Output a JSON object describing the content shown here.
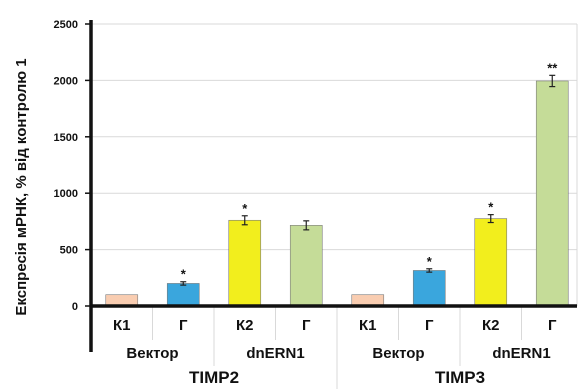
{
  "chart_data": {
    "type": "bar",
    "ylabel": "Експресія мРНК, % від контролю 1",
    "ylim": [
      0,
      2500
    ],
    "yticks": [
      0,
      500,
      1000,
      1500,
      2000,
      2500
    ],
    "grid": "horizontal",
    "categories": [
      "К1",
      "Г",
      "К2",
      "Г",
      "К1",
      "Г",
      "К2",
      "Г"
    ],
    "values": [
      100,
      200,
      760,
      715,
      100,
      315,
      775,
      1995
    ],
    "errors": [
      0,
      15,
      40,
      40,
      0,
      15,
      35,
      50
    ],
    "significance": [
      "",
      "*",
      "*",
      "",
      "",
      "*",
      "*",
      "**"
    ],
    "colors": [
      "#f9cdb1",
      "#3aa6dd",
      "#f2ee1d",
      "#c5dc98",
      "#f9cdb1",
      "#3aa6dd",
      "#f2ee1d",
      "#c5dc98"
    ],
    "subgroups": [
      {
        "label": "Вектор",
        "span": [
          0,
          1
        ]
      },
      {
        "label": "dnERN1",
        "span": [
          2,
          3
        ]
      },
      {
        "label": "Вектор",
        "span": [
          4,
          5
        ]
      },
      {
        "label": "dnERN1",
        "span": [
          6,
          7
        ]
      }
    ],
    "groups": [
      {
        "label": "TIMP2",
        "span": [
          0,
          3
        ]
      },
      {
        "label": "TIMP3",
        "span": [
          4,
          7
        ]
      }
    ]
  }
}
